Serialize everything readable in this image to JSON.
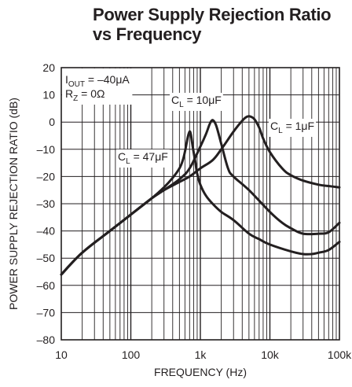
{
  "chart_data": {
    "type": "line",
    "title": "Power Supply Rejection Ratio vs Frequency",
    "xlabel": "FREQUENCY (Hz)",
    "ylabel": "POWER SUPPLY REJECTION RATIO (dB)",
    "x_scale": "log",
    "xlim": [
      10,
      100000
    ],
    "ylim": [
      -80,
      20
    ],
    "grid": true,
    "x_ticks": [
      10,
      100,
      1000,
      10000,
      100000
    ],
    "x_tick_labels": [
      "10",
      "100",
      "1k",
      "10k",
      "100k"
    ],
    "y_ticks": [
      20,
      10,
      0,
      -10,
      -20,
      -30,
      -40,
      -50,
      -60,
      -70,
      -80
    ],
    "y_tick_labels": [
      "20",
      "10",
      "0",
      "–10",
      "–20",
      "–30",
      "–40",
      "–50",
      "–60",
      "–70",
      "–80"
    ],
    "conditions": {
      "iout": {
        "main": "I",
        "sub": "OUT",
        "rest": " = –40μA"
      },
      "rz": {
        "main": "R",
        "sub": "Z",
        "rest": " = 0Ω"
      }
    },
    "series": [
      {
        "label": {
          "main": "C",
          "sub": "L",
          "rest": " = 47μF"
        },
        "x": [
          10,
          20,
          50,
          100,
          200,
          300,
          400,
          500,
          560,
          610,
          660,
          700,
          730,
          760,
          800,
          850,
          900,
          1000,
          1200,
          1500,
          2000,
          3000,
          5000,
          7000,
          10000,
          20000,
          30000,
          40000,
          50000,
          70000,
          100000
        ],
        "y": [
          -56,
          -48,
          -40,
          -34,
          -28,
          -24,
          -20.5,
          -17,
          -14,
          -10,
          -5.5,
          -3.5,
          -4.5,
          -7.5,
          -11,
          -15,
          -19,
          -23,
          -27,
          -30,
          -33,
          -36,
          -41,
          -43,
          -45,
          -47.5,
          -48.5,
          -48.5,
          -48,
          -47,
          -44
        ]
      },
      {
        "label": {
          "main": "C",
          "sub": "L",
          "rest": " = 10μF"
        },
        "x": [
          10,
          20,
          50,
          100,
          200,
          300,
          500,
          700,
          1000,
          1200,
          1350,
          1450,
          1550,
          1700,
          2000,
          2500,
          3000,
          5000,
          10000,
          15000,
          20000,
          30000,
          50000,
          70000,
          100000
        ],
        "y": [
          -56,
          -48,
          -40,
          -34,
          -28,
          -25,
          -21,
          -17,
          -9,
          -4.5,
          -1,
          0.5,
          0.5,
          -1.5,
          -8,
          -17,
          -20,
          -25,
          -33,
          -37,
          -39,
          -41,
          -41,
          -40.5,
          -37
        ]
      },
      {
        "label": {
          "main": "C",
          "sub": "L",
          "rest": " = 1μF"
        },
        "x": [
          10,
          20,
          50,
          100,
          200,
          300,
          500,
          700,
          1000,
          1500,
          2000,
          3000,
          4000,
          4700,
          5300,
          6000,
          7000,
          8000,
          10000,
          15000,
          20000,
          30000,
          50000,
          70000,
          100000
        ],
        "y": [
          -56,
          -48,
          -40,
          -34,
          -28,
          -25,
          -22,
          -20,
          -17,
          -14,
          -10,
          -3.5,
          0.5,
          2,
          2,
          1,
          -2,
          -6,
          -11,
          -17,
          -19.5,
          -21.5,
          -23,
          -23.5,
          -24
        ]
      }
    ],
    "colors": {
      "line": "#231f20",
      "grid": "#231f20",
      "background": "#ffffff"
    }
  }
}
